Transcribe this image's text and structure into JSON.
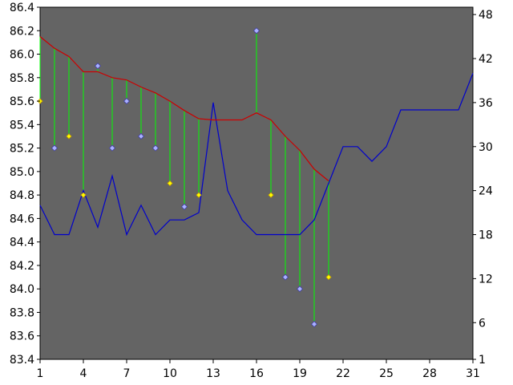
{
  "chart_data": {
    "type": "line",
    "title": "",
    "xlabel": "",
    "ylabel": "",
    "x_ticks": [
      "1",
      "4",
      "7",
      "10",
      "13",
      "16",
      "19",
      "22",
      "25",
      "28",
      "31"
    ],
    "x_range": [
      1,
      31
    ],
    "y_left_ticks": [
      "83.4",
      "83.6",
      "83.8",
      "84.0",
      "84.2",
      "84.4",
      "84.6",
      "84.8",
      "85.0",
      "85.2",
      "85.4",
      "85.6",
      "85.8",
      "86.0",
      "86.2",
      "86.4"
    ],
    "y_left_range": [
      83.4,
      86.4
    ],
    "y_right_ticks": [
      "1",
      "6",
      "12",
      "18",
      "24",
      "30",
      "36",
      "42",
      "48"
    ],
    "y_right_range": [
      1,
      49
    ],
    "grid": false,
    "plot_background": "#646464",
    "series": [
      {
        "axis": "right",
        "color": "#0000cc",
        "x": [
          1,
          2,
          3,
          4,
          5,
          6,
          7,
          8,
          9,
          10,
          11,
          12,
          13,
          14,
          15,
          16,
          17,
          18,
          19,
          20,
          21,
          22,
          23,
          24,
          25,
          26,
          27,
          28,
          29,
          30,
          31
        ],
        "values": [
          22,
          18,
          18,
          24,
          19,
          26,
          18,
          22,
          18,
          20,
          20,
          21,
          36,
          24,
          20,
          18,
          18,
          18,
          18,
          20,
          25,
          30,
          30,
          28,
          30,
          35,
          35,
          35,
          35,
          35,
          40
        ]
      },
      {
        "axis": "left",
        "color": "#cc0000",
        "x": [
          1,
          2,
          3,
          4,
          5,
          6,
          7,
          8,
          9,
          10,
          11,
          12,
          13,
          14,
          15,
          16,
          17,
          18,
          19,
          20,
          21
        ],
        "values": [
          86.15,
          86.05,
          85.98,
          85.85,
          85.85,
          85.8,
          85.78,
          85.72,
          85.67,
          85.6,
          85.52,
          85.45,
          85.44,
          85.44,
          85.44,
          85.5,
          85.44,
          85.3,
          85.18,
          85.02,
          84.92
        ]
      },
      {
        "axis": "left",
        "type": "scatter",
        "color": "#ffff00",
        "x": [
          1,
          3,
          4,
          10,
          12,
          17,
          21
        ],
        "values": [
          85.6,
          85.3,
          84.8,
          84.9,
          84.8,
          84.8,
          84.1
        ]
      },
      {
        "axis": "left",
        "type": "scatter",
        "color": "#aab0ff",
        "x": [
          2,
          5,
          6,
          7,
          8,
          9,
          11,
          16,
          18,
          19,
          20
        ],
        "values": [
          85.2,
          85.9,
          85.2,
          85.6,
          85.3,
          85.2,
          84.7,
          86.2,
          84.1,
          84.0,
          83.7
        ]
      }
    ],
    "connector_color": "#00ff00"
  }
}
